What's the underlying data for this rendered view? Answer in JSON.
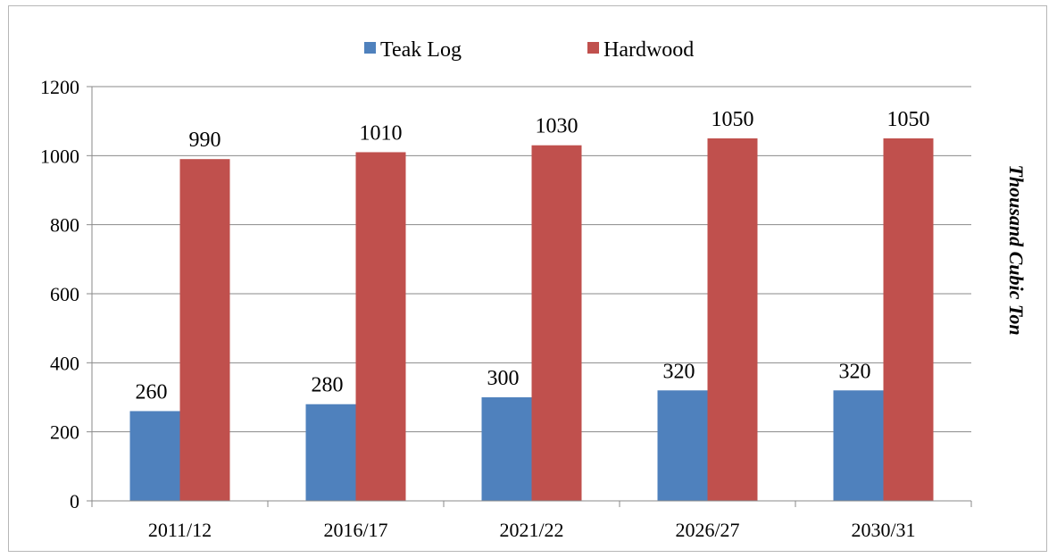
{
  "chart_data": {
    "type": "bar",
    "categories": [
      "2011/12",
      "2016/17",
      "2021/22",
      "2026/27",
      "2030/31"
    ],
    "series": [
      {
        "name": "Teak Log",
        "values": [
          260,
          280,
          300,
          320,
          320
        ],
        "color": "#4f81bd"
      },
      {
        "name": "Hardwood",
        "values": [
          990,
          1010,
          1030,
          1050,
          1050
        ],
        "color": "#c0504d"
      }
    ],
    "title": "",
    "xlabel": "",
    "ylabel": "Thousand Cubic Ton",
    "ylim": [
      0,
      1200
    ],
    "yticks": [
      0,
      200,
      400,
      600,
      800,
      1000,
      1200
    ],
    "grid": true,
    "legend_position": "top-center",
    "data_labels": true
  }
}
